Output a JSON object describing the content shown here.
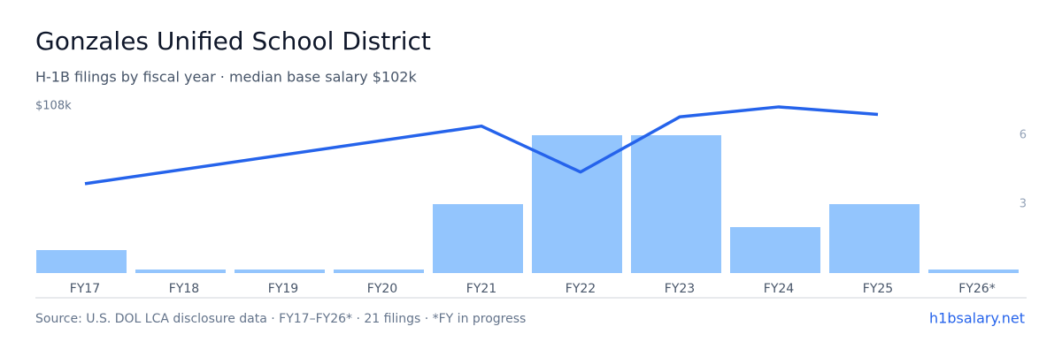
{
  "chart_data": {
    "type": "bar-line",
    "title": "Gonzales Unified School District",
    "subtitle": "H-1B filings by fiscal year · median base salary $102k",
    "categories": [
      "FY17",
      "FY18",
      "FY19",
      "FY20",
      "FY21",
      "FY22",
      "FY23",
      "FY24",
      "FY25",
      "FY26*"
    ],
    "series": [
      {
        "name": "H-1B filings",
        "type": "bar",
        "axis": "y2",
        "color": "#93c5fd",
        "values": [
          1,
          0,
          0,
          0,
          3,
          6,
          6,
          2,
          3,
          0
        ]
      },
      {
        "name": "Median base salary",
        "type": "line",
        "color": "#2563eb",
        "values": [
          98.7,
          null,
          null,
          null,
          105.6,
          100.1,
          106.7,
          107.9,
          107.0,
          null
        ]
      }
    ],
    "ylim": [
      88,
      108
    ],
    "yticks": [
      {
        "value": 108,
        "label": "$108k"
      }
    ],
    "y2lim": [
      0,
      7.27
    ],
    "y2ticks": [
      3,
      6
    ],
    "source": "Source: U.S. DOL LCA disclosure data · FY17–FY26* · 21 filings · *FY in progress",
    "brand": "h1bsalary.net"
  }
}
